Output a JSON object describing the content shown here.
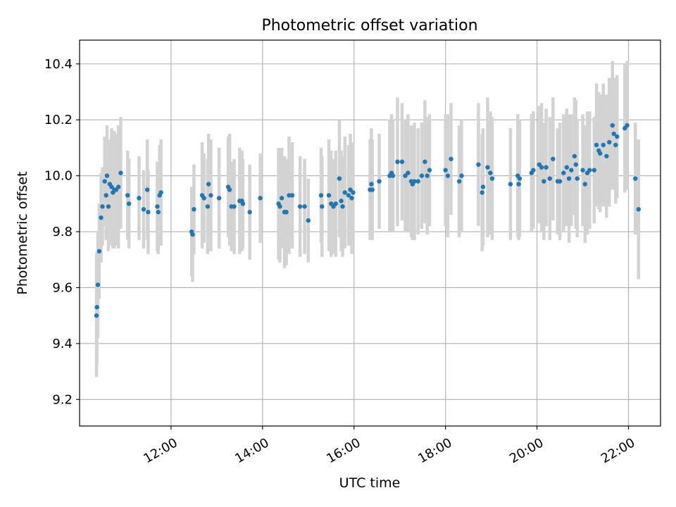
{
  "chart_data": {
    "type": "scatter",
    "title": "Photometric offset variation",
    "xlabel": "UTC time",
    "ylabel": "Photometric offset",
    "x_ticks": [
      "12:00",
      "14:00",
      "16:00",
      "18:00",
      "20:00",
      "22:00"
    ],
    "x_tick_hours": [
      12,
      14,
      16,
      18,
      20,
      22
    ],
    "xlim_hours": [
      10.0,
      22.7
    ],
    "y_ticks": [
      "9.2",
      "9.4",
      "9.6",
      "9.8",
      "10.0",
      "10.2",
      "10.4"
    ],
    "y_tick_values": [
      9.2,
      9.4,
      9.6,
      9.8,
      10.0,
      10.2,
      10.4
    ],
    "ylim": [
      9.105,
      10.485
    ],
    "grid": true,
    "colors": {
      "points": "#1f77b4",
      "errorbars": "#d3d3d3",
      "grid": "#b0b0b0"
    },
    "series": [
      {
        "points": [
          [
            10.37,
            9.5,
            0.22
          ],
          [
            10.38,
            9.53,
            0.2
          ],
          [
            10.4,
            9.61,
            0.19
          ],
          [
            10.43,
            9.73,
            0.17
          ],
          [
            10.47,
            9.85,
            0.16
          ],
          [
            10.5,
            9.89,
            0.14
          ],
          [
            10.55,
            9.98,
            0.16
          ],
          [
            10.58,
            9.93,
            0.16
          ],
          [
            10.6,
            10.0,
            0.18
          ],
          [
            10.63,
            9.89,
            0.16
          ],
          [
            10.66,
            9.97,
            0.16
          ],
          [
            10.7,
            9.96,
            0.21
          ],
          [
            10.73,
            9.94,
            0.2
          ],
          [
            10.76,
            9.95,
            0.21
          ],
          [
            10.8,
            9.95,
            0.2
          ],
          [
            10.85,
            9.96,
            0.22
          ],
          [
            10.9,
            10.01,
            0.2
          ],
          [
            11.05,
            9.93,
            0.16
          ],
          [
            11.08,
            9.9,
            0.16
          ],
          [
            11.3,
            9.92,
            0.15
          ],
          [
            11.4,
            9.88,
            0.14
          ],
          [
            11.48,
            9.95,
            0.18
          ],
          [
            11.5,
            9.87,
            0.15
          ],
          [
            11.7,
            9.89,
            0.16
          ],
          [
            11.72,
            9.87,
            0.15
          ],
          [
            11.75,
            9.93,
            0.18
          ],
          [
            11.78,
            9.94,
            0.19
          ],
          [
            12.45,
            9.8,
            0.16
          ],
          [
            12.47,
            9.79,
            0.17
          ],
          [
            12.5,
            9.88,
            0.16
          ],
          [
            12.68,
            9.93,
            0.19
          ],
          [
            12.72,
            9.92,
            0.16
          ],
          [
            12.8,
            9.89,
            0.17
          ],
          [
            12.82,
            9.97,
            0.18
          ],
          [
            12.87,
            9.93,
            0.2
          ],
          [
            13.05,
            9.92,
            0.18
          ],
          [
            13.25,
            9.96,
            0.18
          ],
          [
            13.28,
            9.95,
            0.2
          ],
          [
            13.32,
            9.89,
            0.16
          ],
          [
            13.38,
            9.89,
            0.17
          ],
          [
            13.5,
            9.91,
            0.19
          ],
          [
            13.55,
            9.91,
            0.18
          ],
          [
            13.57,
            9.9,
            0.16
          ],
          [
            13.72,
            9.87,
            0.17
          ],
          [
            13.95,
            9.92,
            0.16
          ],
          [
            14.35,
            9.9,
            0.2
          ],
          [
            14.38,
            9.89,
            0.2
          ],
          [
            14.42,
            9.92,
            0.18
          ],
          [
            14.48,
            9.87,
            0.2
          ],
          [
            14.52,
            9.87,
            0.19
          ],
          [
            14.58,
            9.93,
            0.21
          ],
          [
            14.65,
            9.93,
            0.19
          ],
          [
            14.82,
            9.89,
            0.18
          ],
          [
            14.92,
            9.89,
            0.17
          ],
          [
            15.0,
            9.84,
            0.15
          ],
          [
            15.28,
            9.93,
            0.17
          ],
          [
            15.3,
            9.89,
            0.18
          ],
          [
            15.45,
            9.93,
            0.2
          ],
          [
            15.5,
            9.9,
            0.19
          ],
          [
            15.55,
            9.89,
            0.17
          ],
          [
            15.6,
            9.9,
            0.19
          ],
          [
            15.68,
            9.99,
            0.21
          ],
          [
            15.72,
            9.91,
            0.18
          ],
          [
            15.75,
            9.89,
            0.18
          ],
          [
            15.8,
            9.94,
            0.2
          ],
          [
            15.88,
            9.93,
            0.18
          ],
          [
            15.92,
            9.95,
            0.2
          ],
          [
            15.95,
            9.92,
            0.2
          ],
          [
            15.98,
            9.94,
            0.17
          ],
          [
            16.35,
            9.95,
            0.18
          ],
          [
            16.38,
            9.97,
            0.2
          ],
          [
            16.4,
            9.95,
            0.18
          ],
          [
            16.55,
            9.98,
            0.17
          ],
          [
            16.78,
            10.0,
            0.2
          ],
          [
            16.82,
            10.01,
            0.21
          ],
          [
            16.85,
            10.0,
            0.2
          ],
          [
            16.95,
            10.05,
            0.23
          ],
          [
            17.05,
            10.05,
            0.21
          ],
          [
            17.12,
            10.0,
            0.2
          ],
          [
            17.18,
            10.01,
            0.21
          ],
          [
            17.25,
            9.98,
            0.2
          ],
          [
            17.28,
            9.97,
            0.2
          ],
          [
            17.32,
            9.98,
            0.21
          ],
          [
            17.4,
            9.98,
            0.19
          ],
          [
            17.48,
            10.0,
            0.19
          ],
          [
            17.55,
            10.05,
            0.22
          ],
          [
            17.6,
            10.0,
            0.21
          ],
          [
            17.65,
            10.02,
            0.2
          ],
          [
            18.0,
            10.02,
            0.2
          ],
          [
            18.05,
            10.0,
            0.22
          ],
          [
            18.12,
            10.06,
            0.2
          ],
          [
            18.3,
            9.98,
            0.2
          ],
          [
            18.35,
            10.0,
            0.2
          ],
          [
            18.72,
            10.04,
            0.22
          ],
          [
            18.8,
            9.94,
            0.21
          ],
          [
            18.82,
            9.96,
            0.21
          ],
          [
            18.92,
            10.03,
            0.25
          ],
          [
            18.98,
            10.01,
            0.22
          ],
          [
            19.02,
            9.99,
            0.22
          ],
          [
            19.42,
            9.97,
            0.2
          ],
          [
            19.58,
            10.0,
            0.22
          ],
          [
            19.6,
            9.97,
            0.2
          ],
          [
            19.62,
            9.99,
            0.21
          ],
          [
            19.88,
            10.01,
            0.21
          ],
          [
            19.92,
            10.02,
            0.21
          ],
          [
            20.05,
            10.04,
            0.21
          ],
          [
            20.1,
            10.03,
            0.23
          ],
          [
            20.15,
            9.98,
            0.21
          ],
          [
            20.2,
            10.03,
            0.21
          ],
          [
            20.28,
            9.99,
            0.22
          ],
          [
            20.35,
            10.06,
            0.22
          ],
          [
            20.45,
            9.98,
            0.19
          ],
          [
            20.5,
            9.98,
            0.21
          ],
          [
            20.58,
            10.01,
            0.21
          ],
          [
            20.65,
            10.03,
            0.21
          ],
          [
            20.7,
            9.99,
            0.23
          ],
          [
            20.75,
            10.02,
            0.2
          ],
          [
            20.82,
            10.07,
            0.21
          ],
          [
            20.85,
            10.04,
            0.23
          ],
          [
            20.88,
            9.99,
            0.21
          ],
          [
            21.0,
            10.02,
            0.2
          ],
          [
            21.05,
            9.97,
            0.21
          ],
          [
            21.1,
            10.01,
            0.22
          ],
          [
            21.15,
            10.02,
            0.21
          ],
          [
            21.25,
            10.02,
            0.19
          ],
          [
            21.3,
            10.11,
            0.22
          ],
          [
            21.35,
            10.09,
            0.21
          ],
          [
            21.38,
            10.08,
            0.21
          ],
          [
            21.45,
            10.11,
            0.22
          ],
          [
            21.52,
            10.07,
            0.22
          ],
          [
            21.58,
            10.12,
            0.23
          ],
          [
            21.65,
            10.18,
            0.23
          ],
          [
            21.68,
            10.15,
            0.2
          ],
          [
            21.72,
            10.11,
            0.21
          ],
          [
            21.75,
            10.14,
            0.22
          ],
          [
            21.92,
            10.17,
            0.23
          ],
          [
            21.97,
            10.18,
            0.23
          ],
          [
            22.15,
            9.99,
            0.2
          ],
          [
            22.22,
            9.88,
            0.25
          ]
        ]
      }
    ]
  }
}
